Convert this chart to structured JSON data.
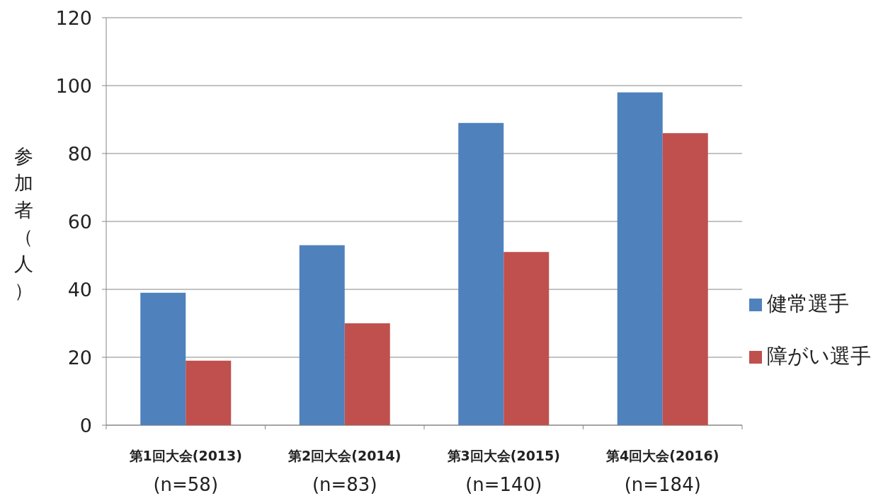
{
  "chart_data": {
    "type": "bar",
    "ylabel": "参加者（人）",
    "categories": [
      "第1回大会(2013)\n(n=58)",
      "第2回大会(2014)\n(n=83)",
      "第3回大会(2015)\n(n=140)",
      "第4回大会(2016)\n(n=184)"
    ],
    "series": [
      {
        "name": "健常選手",
        "color": "#4f81bd",
        "values": [
          39,
          53,
          89,
          98
        ]
      },
      {
        "name": "障がい選手",
        "color": "#c0504d",
        "values": [
          19,
          30,
          51,
          86
        ]
      }
    ],
    "ylim": [
      0,
      120
    ],
    "yticks": [
      0,
      20,
      40,
      60,
      80,
      100,
      120
    ],
    "grid": "y",
    "legend": "right"
  }
}
